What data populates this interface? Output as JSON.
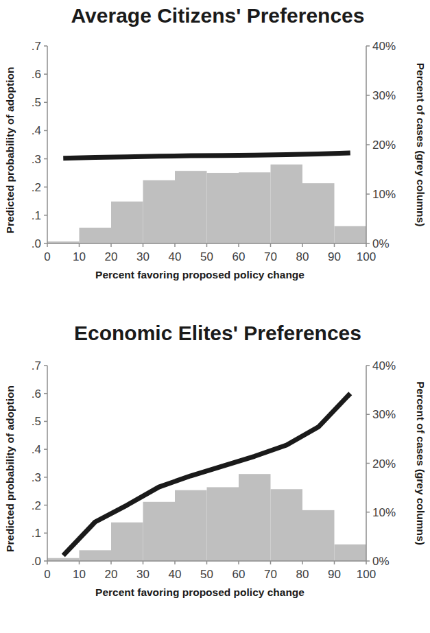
{
  "chart_data": [
    {
      "type": "histogram",
      "title": "Average Citizens' Preferences",
      "x_label": "Percent favoring proposed policy change",
      "y_label": "Predicted probability of adoption",
      "y2_label": "Percent of cases (grey columns)",
      "xlim": [
        0,
        100
      ],
      "xticks": [
        0,
        10,
        20,
        30,
        40,
        50,
        60,
        70,
        80,
        90,
        100
      ],
      "ylim": [
        0,
        0.7
      ],
      "yticks": [
        {
          "value": 0,
          "label": ".0"
        },
        {
          "value": 0.1,
          "label": ".1"
        },
        {
          "value": 0.2,
          "label": ".2"
        },
        {
          "value": 0.3,
          "label": ".3"
        },
        {
          "value": 0.4,
          "label": ".4"
        },
        {
          "value": 0.5,
          "label": ".5"
        },
        {
          "value": 0.6,
          "label": ".6"
        },
        {
          "value": 0.7,
          "label": ".7"
        }
      ],
      "y2lim": [
        0,
        40
      ],
      "y2ticks": [
        {
          "value": 0,
          "label": "0%"
        },
        {
          "value": 10,
          "label": "10%"
        },
        {
          "value": 20,
          "label": "20%"
        },
        {
          "value": 30,
          "label": "30%"
        },
        {
          "value": 40,
          "label": "40%"
        }
      ],
      "grid": false,
      "bins": [
        0,
        10,
        20,
        30,
        40,
        50,
        60,
        70,
        80,
        90,
        100
      ],
      "series": [
        {
          "type": "bar",
          "axis": "y2",
          "color": "#bfbfbf",
          "values": [
            0.4,
            3.2,
            8.5,
            12.8,
            14.7,
            14.3,
            14.4,
            16.0,
            12.2,
            3.5
          ]
        },
        {
          "type": "line",
          "color": "#1a1a1a",
          "x": [
            5,
            15,
            25,
            35,
            45,
            55,
            65,
            75,
            85,
            95
          ],
          "values": [
            0.302,
            0.305,
            0.307,
            0.309,
            0.311,
            0.312,
            0.313,
            0.315,
            0.317,
            0.321
          ]
        }
      ]
    },
    {
      "type": "histogram",
      "title": "Economic Elites' Preferences",
      "x_label": "Percent favoring proposed policy change",
      "y_label": "Predicted probability of adoption",
      "y2_label": "Percent of cases (grey columns)",
      "xlim": [
        0,
        100
      ],
      "xticks": [
        0,
        10,
        20,
        30,
        40,
        50,
        60,
        70,
        80,
        90,
        100
      ],
      "ylim": [
        0,
        0.7
      ],
      "yticks": [
        {
          "value": 0,
          "label": ".0"
        },
        {
          "value": 0.1,
          "label": ".1"
        },
        {
          "value": 0.2,
          "label": ".2"
        },
        {
          "value": 0.3,
          "label": ".3"
        },
        {
          "value": 0.4,
          "label": ".4"
        },
        {
          "value": 0.5,
          "label": ".5"
        },
        {
          "value": 0.6,
          "label": ".6"
        },
        {
          "value": 0.7,
          "label": ".7"
        }
      ],
      "y2lim": [
        0,
        40
      ],
      "y2ticks": [
        {
          "value": 0,
          "label": "0%"
        },
        {
          "value": 10,
          "label": "10%"
        },
        {
          "value": 20,
          "label": "20%"
        },
        {
          "value": 30,
          "label": "30%"
        },
        {
          "value": 40,
          "label": "40%"
        }
      ],
      "grid": false,
      "bins": [
        0,
        10,
        20,
        30,
        40,
        50,
        60,
        70,
        80,
        90,
        100
      ],
      "series": [
        {
          "type": "bar",
          "axis": "y2",
          "color": "#bfbfbf",
          "values": [
            0.6,
            2.2,
            7.9,
            12.1,
            14.5,
            15.1,
            17.8,
            14.7,
            10.4,
            3.4
          ]
        },
        {
          "type": "line",
          "color": "#1a1a1a",
          "x": [
            5,
            15,
            25,
            35,
            45,
            55,
            65,
            75,
            85,
            95
          ],
          "values": [
            0.02,
            0.14,
            0.2,
            0.265,
            0.305,
            0.34,
            0.375,
            0.415,
            0.48,
            0.6
          ]
        }
      ]
    }
  ]
}
